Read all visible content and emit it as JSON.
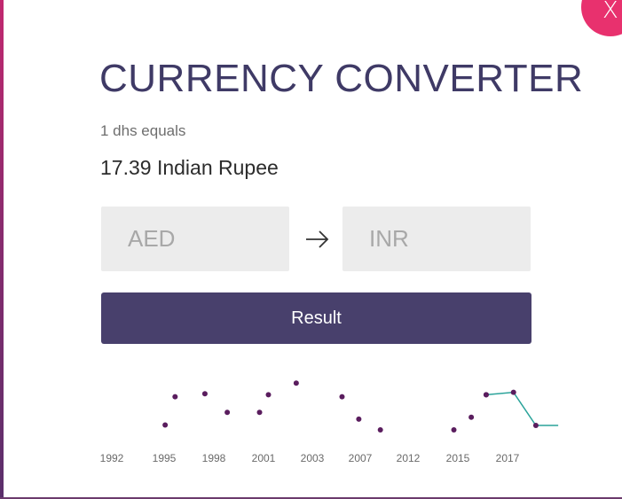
{
  "dialog": {
    "title": "CURRENCY CONVERTER",
    "close_label": "X"
  },
  "rate": {
    "label": "1 dhs equals",
    "value": "17.39 Indian Rupee"
  },
  "converter": {
    "from_currency": "AED",
    "to_currency": "INR",
    "result_label": "Result"
  },
  "colors": {
    "title": "#3f3a66",
    "button": "#48406c",
    "close": "#e8316e",
    "line_purple": "#7a2472",
    "line_teal": "#2aa39a"
  },
  "chart_data": {
    "type": "line",
    "x_tick_labels": [
      "1992",
      "1995",
      "1998",
      "2001",
      "2003",
      "2007",
      "2012",
      "2015",
      "2017"
    ],
    "series": [
      {
        "color": "#7a2472",
        "points": [
          {
            "x": 0,
            "y": 0.0,
            "marker": false
          },
          {
            "x": 0.75,
            "y": 0.47,
            "marker": false
          },
          {
            "x": 1.2,
            "y": 0.1,
            "marker": true
          },
          {
            "x": 1.4,
            "y": 0.68,
            "marker": true
          },
          {
            "x": 2.0,
            "y": 0.74,
            "marker": true
          },
          {
            "x": 2.45,
            "y": 0.36,
            "marker": true
          },
          {
            "x": 3.1,
            "y": 0.36,
            "marker": true
          },
          {
            "x": 3.28,
            "y": 0.72,
            "marker": true
          },
          {
            "x": 3.85,
            "y": 0.96,
            "marker": true
          },
          {
            "x": 4.8,
            "y": 0.68,
            "marker": true
          },
          {
            "x": 5.15,
            "y": 0.22,
            "marker": true
          },
          {
            "x": 5.6,
            "y": 0.0,
            "marker": true
          },
          {
            "x": 7.1,
            "y": 0.0,
            "marker": true
          },
          {
            "x": 7.45,
            "y": 0.26,
            "marker": true
          },
          {
            "x": 7.75,
            "y": 0.72,
            "marker": true
          }
        ]
      },
      {
        "color": "#2aa39a",
        "points": [
          {
            "x": 7.75,
            "y": 0.72,
            "marker": true
          },
          {
            "x": 8.3,
            "y": 0.77,
            "marker": true
          },
          {
            "x": 8.75,
            "y": 0.09,
            "marker": true
          },
          {
            "x": 9.2,
            "y": 0.09,
            "marker": false
          }
        ]
      }
    ]
  }
}
